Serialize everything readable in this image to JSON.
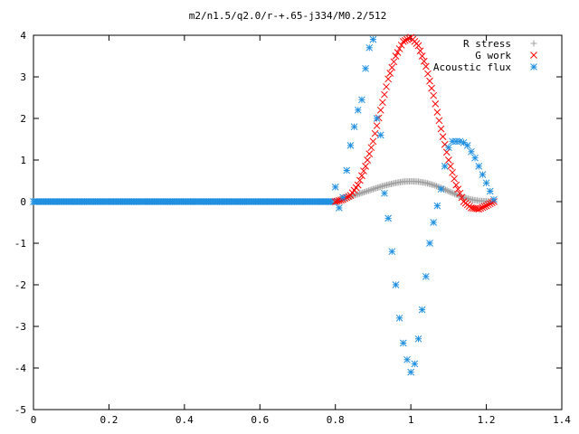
{
  "chart_data": {
    "type": "scatter",
    "title": "m2/n1.5/q2.0/r-+.65-j334/M0.2/512",
    "xlabel": "",
    "ylabel": "",
    "xlim": [
      0,
      1.4
    ],
    "ylim": [
      -5,
      4
    ],
    "x_ticks": [
      "0",
      "0.2",
      "0.4",
      "0.6",
      "0.8",
      "1",
      "1.2",
      "1.4"
    ],
    "y_ticks": [
      "4",
      "3",
      "2",
      "1",
      "0",
      "-1",
      "-2",
      "-3",
      "-4",
      "-5"
    ],
    "grid": false,
    "legend_position": "top-right",
    "series": [
      {
        "name": "R stress",
        "marker": "plus",
        "color": "#a0a0a0",
        "x": [
          0.8,
          0.82,
          0.84,
          0.86,
          0.88,
          0.9,
          0.92,
          0.94,
          0.96,
          0.98,
          1.0,
          1.02,
          1.04,
          1.06,
          1.08,
          1.1,
          1.12,
          1.14,
          1.16,
          1.18,
          1.2,
          1.22
        ],
        "y": [
          0.0,
          0.06,
          0.12,
          0.18,
          0.24,
          0.3,
          0.36,
          0.41,
          0.45,
          0.48,
          0.49,
          0.48,
          0.45,
          0.4,
          0.33,
          0.25,
          0.17,
          0.1,
          0.05,
          0.02,
          0.01,
          0.0
        ]
      },
      {
        "name": "G work",
        "marker": "cross",
        "color": "#ff0000",
        "x": [
          0.8,
          0.82,
          0.84,
          0.86,
          0.88,
          0.9,
          0.92,
          0.94,
          0.96,
          0.98,
          1.0,
          1.02,
          1.04,
          1.06,
          1.08,
          1.1,
          1.12,
          1.14,
          1.16,
          1.18,
          1.2,
          1.22
        ],
        "y": [
          0.0,
          0.05,
          0.15,
          0.4,
          0.85,
          1.45,
          2.2,
          2.95,
          3.5,
          3.85,
          3.95,
          3.75,
          3.25,
          2.55,
          1.75,
          1.0,
          0.4,
          0.0,
          -0.15,
          -0.18,
          -0.1,
          0.0
        ]
      },
      {
        "name": "Acoustic flux",
        "marker": "star",
        "color": "#1f8fe0",
        "x": [
          0.8,
          0.81,
          0.82,
          0.83,
          0.84,
          0.85,
          0.86,
          0.87,
          0.88,
          0.89,
          0.9,
          0.91,
          0.92,
          0.93,
          0.94,
          0.95,
          0.96,
          0.97,
          0.98,
          0.99,
          1.0,
          1.01,
          1.02,
          1.03,
          1.04,
          1.05,
          1.06,
          1.07,
          1.08,
          1.09,
          1.1,
          1.11,
          1.12,
          1.13,
          1.14,
          1.15,
          1.16,
          1.17,
          1.18,
          1.19,
          1.2,
          1.21,
          1.22
        ],
        "y": [
          0.35,
          -0.15,
          0.1,
          0.75,
          1.35,
          1.8,
          2.2,
          2.45,
          3.2,
          3.7,
          3.9,
          2.0,
          1.6,
          0.2,
          -0.4,
          -1.2,
          -2.0,
          -2.8,
          -3.4,
          -3.8,
          -4.1,
          -3.9,
          -3.3,
          -2.6,
          -1.8,
          -1.0,
          -0.5,
          -0.1,
          0.3,
          0.85,
          1.3,
          1.45,
          1.45,
          1.45,
          1.42,
          1.35,
          1.2,
          1.05,
          0.85,
          0.65,
          0.45,
          0.25,
          0.05
        ]
      }
    ]
  }
}
